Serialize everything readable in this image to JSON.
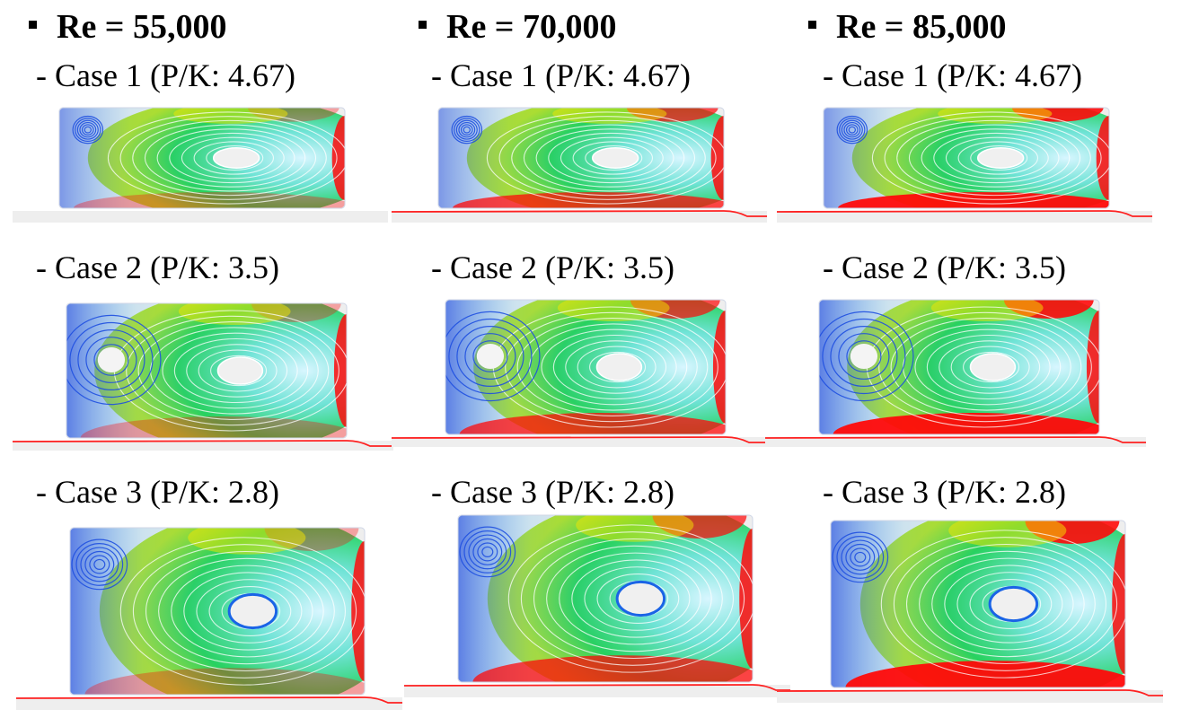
{
  "columns": [
    {
      "heading": "Re = 55,000"
    },
    {
      "heading": "Re = 70,000"
    },
    {
      "heading": "Re = 85,000"
    }
  ],
  "rows": [
    {
      "label": "- Case 1 (P/K: 4.67)"
    },
    {
      "label": "- Case 2 (P/K: 3.5)"
    },
    {
      "label": "- Case 3 (P/K: 2.8)"
    }
  ],
  "colors": {
    "low": "#1e4fe0",
    "mid": "#26d25a",
    "high": "#ff0a0a",
    "background": "#eeeeee"
  }
}
